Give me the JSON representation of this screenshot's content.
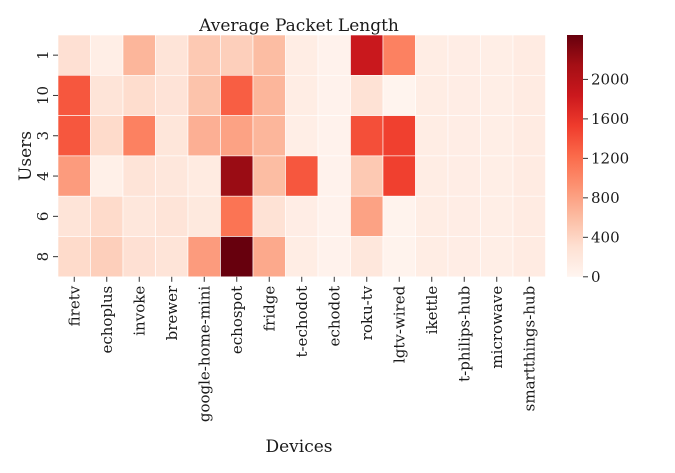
{
  "chart_data": {
    "type": "heatmap",
    "title": "Average Packet Length",
    "xlabel": "Devices",
    "ylabel": "Users",
    "x_categories": [
      "firetv",
      "echoplus",
      "invoke",
      "brewer",
      "google-home-mini",
      "echospot",
      "fridge",
      "t-echodot",
      "echodot",
      "roku-tv",
      "lgtv-wired",
      "ikettle",
      "t-philips-hub",
      "microwave",
      "smartthings-hub"
    ],
    "y_categories": [
      "1",
      "10",
      "3",
      "4",
      "6",
      "8"
    ],
    "values": [
      [
        300,
        100,
        650,
        250,
        500,
        450,
        600,
        120,
        40,
        1850,
        1050,
        120,
        110,
        100,
        140
      ],
      [
        1350,
        250,
        330,
        260,
        550,
        1300,
        650,
        120,
        40,
        280,
        20,
        120,
        110,
        100,
        140
      ],
      [
        1350,
        350,
        1050,
        220,
        700,
        800,
        650,
        100,
        40,
        1400,
        1500,
        120,
        110,
        100,
        140
      ],
      [
        850,
        80,
        250,
        200,
        150,
        2200,
        600,
        1350,
        40,
        500,
        1500,
        120,
        110,
        100,
        140
      ],
      [
        250,
        350,
        200,
        250,
        180,
        1150,
        280,
        110,
        40,
        800,
        30,
        120,
        110,
        100,
        140
      ],
      [
        350,
        450,
        300,
        250,
        850,
        2450,
        750,
        120,
        40,
        200,
        30,
        120,
        110,
        100,
        140
      ]
    ],
    "colorscale": "Reds",
    "vmin": 0,
    "vmax": 2450,
    "colorbar_ticks": [
      0,
      400,
      800,
      1200,
      1600,
      2000
    ]
  }
}
